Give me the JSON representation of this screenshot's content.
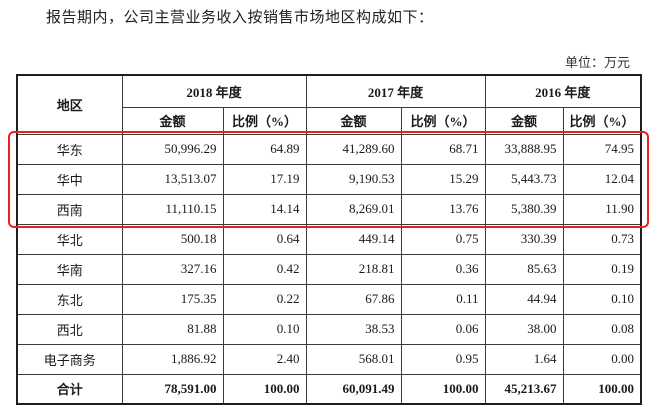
{
  "intro_text": "报告期内，公司主营业务收入按销售市场地区构成如下：",
  "unit_text": "单位：万元",
  "header": {
    "region": "地区",
    "years": [
      "2018 年度",
      "2017 年度",
      "2016 年度"
    ],
    "amount": "金额",
    "ratio": "比例（%）"
  },
  "rows": [
    {
      "region": "华东",
      "v": [
        "50,996.29",
        "64.89",
        "41,289.60",
        "68.71",
        "33,888.95",
        "74.95"
      ]
    },
    {
      "region": "华中",
      "v": [
        "13,513.07",
        "17.19",
        "9,190.53",
        "15.29",
        "5,443.73",
        "12.04"
      ]
    },
    {
      "region": "西南",
      "v": [
        "11,110.15",
        "14.14",
        "8,269.01",
        "13.76",
        "5,380.39",
        "11.90"
      ]
    },
    {
      "region": "华北",
      "v": [
        "500.18",
        "0.64",
        "449.14",
        "0.75",
        "330.39",
        "0.73"
      ]
    },
    {
      "region": "华南",
      "v": [
        "327.16",
        "0.42",
        "218.81",
        "0.36",
        "85.63",
        "0.19"
      ]
    },
    {
      "region": "东北",
      "v": [
        "175.35",
        "0.22",
        "67.86",
        "0.11",
        "44.94",
        "0.10"
      ]
    },
    {
      "region": "西北",
      "v": [
        "81.88",
        "0.10",
        "38.53",
        "0.06",
        "38.00",
        "0.08"
      ]
    },
    {
      "region": "电子商务",
      "v": [
        "1,886.92",
        "2.40",
        "568.01",
        "0.95",
        "1.64",
        "0.00"
      ]
    }
  ],
  "total": {
    "label": "合计",
    "v": [
      "78,591.00",
      "100.00",
      "60,091.49",
      "100.00",
      "45,213.67",
      "100.00"
    ]
  },
  "colors": {
    "highlight": "#e8231f"
  }
}
